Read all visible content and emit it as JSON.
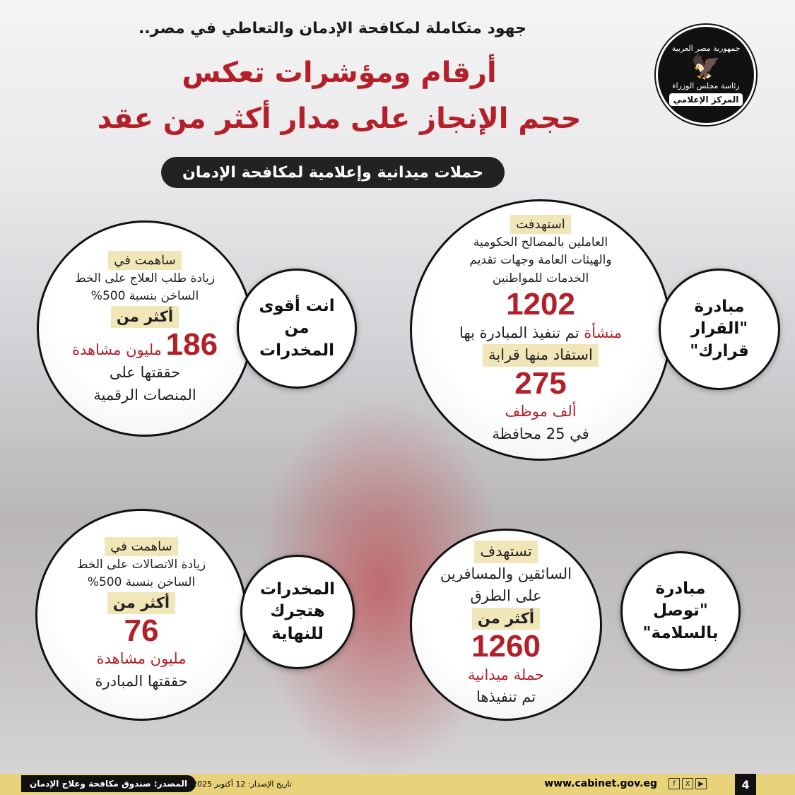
{
  "header": {
    "subtitle": "جهود متكاملة لمكافحة الإدمان والتعاطي في مصر..",
    "title_line1": "أرقام ومؤشرات تعكس",
    "title_line2": "حجم الإنجاز على مدار أكثر من عقد",
    "section": "حملات ميدانية وإعلامية لمكافحة الإدمان"
  },
  "logo": {
    "top_text": "جمهورية مصر العربية",
    "middle_text": "رئاسة مجلس الوزراء",
    "bottom_text": "المركز الإعلامي"
  },
  "cards": [
    {
      "name": "مبادرة \"القرار قرارك\"",
      "tag": "استهدفت",
      "desc": "العاملين بالمصالح الحكومية والهيئات العامة وجهات تقديم الخدمات للمواطنين",
      "num1": "1202",
      "unit1": "منشأة",
      "text1": "تم تنفيذ المبادرة بها",
      "tag2": "استفاد منها قرابة",
      "num2": "275",
      "unit2": "ألف موظف",
      "text2": "في 25 محافظة"
    },
    {
      "name": "انت أقوى من المخدرات",
      "tag": "ساهمت في",
      "desc": "زيادة طلب العلاج على الخط الساخن بنسبة 500%",
      "tag2": "أكثر من",
      "num": "186",
      "unit": "مليون مشاهدة",
      "text": "حققتها على المنصات الرقمية"
    },
    {
      "name": "مبادرة \"توصل بالسلامة\"",
      "tag": "تستهدف",
      "desc": "السائقين والمسافرين على الطرق",
      "tag2": "أكثر من",
      "num": "1260",
      "unit": "حملة ميدانية",
      "text": "تم تنفيذها"
    },
    {
      "name": "المخدرات هتجرك للنهاية",
      "tag": "ساهمت في",
      "desc": "زيادة الاتصالات على الخط الساخن بنسبة 500%",
      "tag2": "أكثر من",
      "num": "76",
      "unit": "مليون مشاهدة",
      "text": "حققتها المبادرة"
    }
  ],
  "footer": {
    "page": "4",
    "website": "www.cabinet.gov.eg",
    "date": "تاريخ الإصدار: 12 أكتوبر 2025",
    "source": "المصدر: صندوق مكافحة وعلاج الإدمان",
    "social": [
      "facebook-icon",
      "x-icon",
      "youtube-icon"
    ]
  },
  "colors": {
    "accent": "#b3202a",
    "tag_bg": "#f1e6b8",
    "footer_bg": "#e8d27a"
  }
}
